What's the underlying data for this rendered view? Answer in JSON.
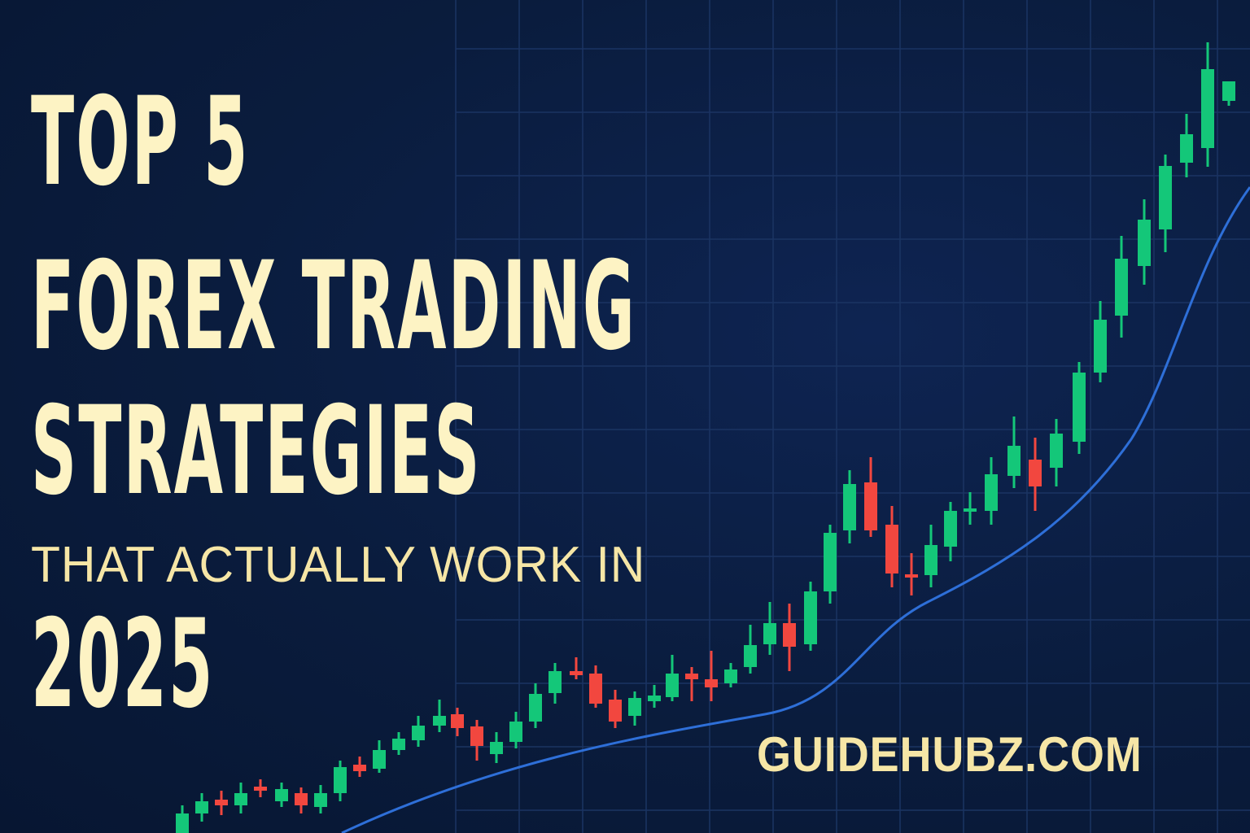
{
  "headline": {
    "line1": "TOP 5",
    "line2": "FOREX TRADING",
    "line3": "STRATEGIES",
    "line4": "THAT ACTUALLY WORK IN",
    "line5": "2025"
  },
  "site": "GUIDEHUBZ.COM",
  "colors": {
    "background": "#0a1c3d",
    "grid": "#1b3463",
    "headline": "#fdf3c4",
    "bullish": "#14c779",
    "bearish": "#f2473f",
    "trendline": "#2e6fd8"
  },
  "icons": {
    "chart": "candlestick-chart-icon"
  }
}
